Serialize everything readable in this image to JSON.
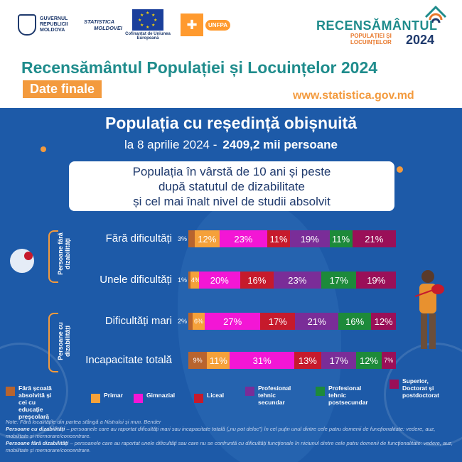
{
  "header": {
    "logos": {
      "gov": "GUVERNUL REPUBLICII MOLDOVA",
      "stat_line1": "STATISTICA",
      "stat_line2": "MOLDOVEI",
      "eu_caption": "Cofinanțat de Uniunea Europeană",
      "unfpa": "UNFPA"
    },
    "census_logo": {
      "title": "RECENSĂMÂNTUL",
      "sub1": "POPULAȚIEI ȘI",
      "sub2": "LOCUINȚELOR",
      "year": "2024"
    },
    "title": "Recensământul Populației și Locuințelor 2024",
    "badge": "Date finale",
    "website": "www.statistica.gov.md"
  },
  "panel": {
    "title": "Populația cu reședință obișnuită",
    "date_text": "la 8 aprilie 2024 -",
    "population": "2409,2 mii persoane",
    "subtitle_lines": [
      "Populația în vârstă de 10 ani și peste",
      "după statutul de dizabilitate",
      "și cel mai înalt nivel de studii absolvit"
    ],
    "group_without": "Persoane fără dizabilități",
    "group_with": "Persoane cu dizabilități"
  },
  "chart_data": {
    "type": "bar",
    "stacked": true,
    "orientation": "horizontal",
    "percent_stacked": true,
    "categories": [
      "Fără dificultăți",
      "Unele dificultăți",
      "Dificultăți mari",
      "Incapacitate totală"
    ],
    "series": [
      {
        "name": "Fără școală absolvită și cei cu educație preșcolară",
        "color": "#b8642e",
        "values": [
          3,
          1,
          2,
          9
        ]
      },
      {
        "name": "Primar",
        "color": "#f5a13a",
        "values": [
          12,
          4,
          6,
          11
        ]
      },
      {
        "name": "Gimnazial",
        "color": "#f316d5",
        "values": [
          23,
          20,
          27,
          31
        ]
      },
      {
        "name": "Liceal",
        "color": "#c61a2c",
        "values": [
          11,
          16,
          17,
          13
        ]
      },
      {
        "name": "Profesional tehnic secundar",
        "color": "#7a2d98",
        "values": [
          19,
          23,
          21,
          17
        ]
      },
      {
        "name": "Profesional tehnic postsecundar",
        "color": "#1d8a3a",
        "values": [
          11,
          17,
          16,
          12
        ]
      },
      {
        "name": "Superior, Doctorat și postdoctorat",
        "color": "#9a0f58",
        "values": [
          21,
          19,
          12,
          7
        ]
      }
    ],
    "labels": [
      [
        "3%",
        "12%",
        "23%",
        "11%",
        "19%",
        "11%",
        "21%"
      ],
      [
        "1%",
        "4%",
        "20%",
        "16%",
        "23%",
        "17%",
        "19%"
      ],
      [
        "2%",
        "6%",
        "27%",
        "17%",
        "21%",
        "16%",
        "12%"
      ],
      [
        "9%",
        "11%",
        "31%",
        "13%",
        "17%",
        "12%",
        "7%"
      ]
    ],
    "legend_placement": "bottom"
  },
  "legend": [
    {
      "text": "Fără școală absolvită și cei cu educație preșcolară",
      "color": "#b8642e"
    },
    {
      "text": "Primar",
      "color": "#f5a13a"
    },
    {
      "text": "Gimnazial",
      "color": "#f316d5"
    },
    {
      "text": "Liceal",
      "color": "#c61a2c"
    },
    {
      "text": "Profesional tehnic secundar",
      "color": "#7a2d98"
    },
    {
      "text": "Profesional tehnic postsecundar",
      "color": "#1d8a3a"
    },
    {
      "text": "Superior, Doctorat și postdoctorat",
      "color": "#9a0f58"
    }
  ],
  "notes": {
    "line1": "Note: Fără localitățile din partea stângă a Nistrului și mun. Bender",
    "with_label": "Persoane cu dizabilități",
    "with_text": " – persoanele care au raportat dificultăți mari sau incapacitate totală („nu pot deloc”) în cel puțin unul dintre cele patru domenii de funcționalitate: vedere, auz, mobilitate și memorare/concentrare.",
    "without_label": "Persoane fără dizabilități",
    "without_text": " – persoanele care au raportat unele dificultăți sau care nu se confruntă cu dificultăți funcționale în niciunul dintre cele patru domenii de funcționalitate: vedere, auz, mobilitate și memorare/concentrare."
  }
}
